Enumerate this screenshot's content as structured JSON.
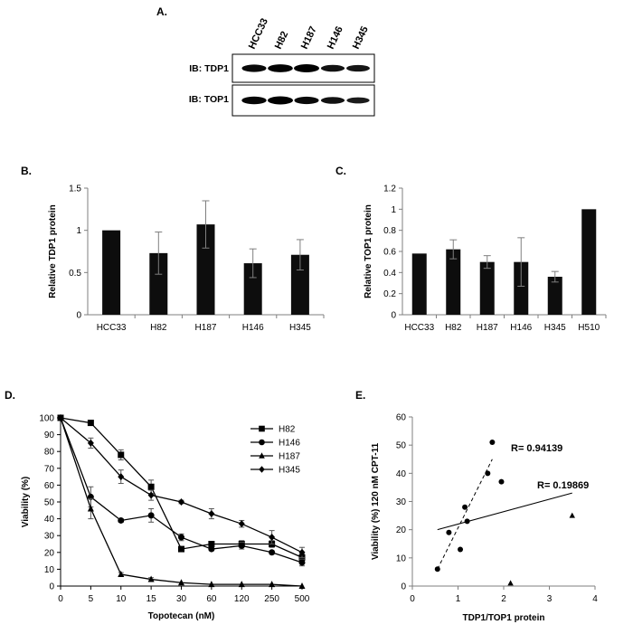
{
  "panels": {
    "a": {
      "letter": "A.",
      "lanes": [
        "HCC33",
        "H82",
        "H187",
        "H146",
        "H345"
      ],
      "blots": [
        {
          "label": "IB: TDP1",
          "intensity": [
            0.85,
            0.95,
            1.0,
            0.7,
            0.65
          ]
        },
        {
          "label": "IB: TOP1",
          "intensity": [
            0.9,
            1.0,
            0.85,
            0.7,
            0.55
          ]
        }
      ]
    },
    "b": {
      "letter": "B."
    },
    "c": {
      "letter": "C."
    },
    "d": {
      "letter": "D."
    },
    "e": {
      "letter": "E.",
      "r1": "R= 0.94139",
      "r2": "R= 0.19869"
    }
  },
  "chart_data": [
    {
      "id": "b",
      "type": "bar",
      "categories": [
        "HCC33",
        "H82",
        "H187",
        "H146",
        "H345"
      ],
      "values": [
        1.0,
        0.73,
        1.07,
        0.61,
        0.71
      ],
      "errors": [
        0,
        0.25,
        0.28,
        0.17,
        0.18
      ],
      "ylabel": "Relative TDP1 protein",
      "ylim": [
        0,
        1.5
      ],
      "yticks": [
        "0",
        "0.5",
        "1",
        "1.5"
      ],
      "ytick_values": [
        0,
        0.5,
        1,
        1.5
      ]
    },
    {
      "id": "c",
      "type": "bar",
      "categories": [
        "HCC33",
        "H82",
        "H187",
        "H146",
        "H345",
        "H510"
      ],
      "values": [
        0.58,
        0.62,
        0.5,
        0.5,
        0.36,
        1.0
      ],
      "errors": [
        0,
        0.09,
        0.06,
        0.23,
        0.05,
        0
      ],
      "ylabel": "Relative TOP1 protein",
      "ylim": [
        0,
        1.2
      ],
      "yticks": [
        "0",
        "0.2",
        "0.4",
        "0.6",
        "0.8",
        "1",
        "1.2"
      ],
      "ytick_values": [
        0,
        0.2,
        0.4,
        0.6,
        0.8,
        1,
        1.2
      ]
    },
    {
      "id": "d",
      "type": "line",
      "categories": [
        "0",
        "5",
        "10",
        "15",
        "30",
        "60",
        "120",
        "250",
        "500"
      ],
      "xlabel": "Topotecan (nM)",
      "ylabel": "Viability (%)",
      "ylim": [
        0,
        100
      ],
      "yticks": [
        "0",
        "10",
        "20",
        "30",
        "40",
        "50",
        "60",
        "70",
        "80",
        "90",
        "100"
      ],
      "ytick_values": [
        0,
        10,
        20,
        30,
        40,
        50,
        60,
        70,
        80,
        90,
        100
      ],
      "legend_position": "top-right",
      "series": [
        {
          "name": "H82",
          "marker": "square",
          "values": [
            100,
            97,
            78,
            59,
            22,
            25,
            25,
            25,
            17
          ],
          "errors": [
            0,
            1,
            3,
            4,
            1,
            1,
            2,
            2,
            2
          ]
        },
        {
          "name": "H146",
          "marker": "circle",
          "values": [
            100,
            53,
            39,
            42,
            29,
            22,
            24,
            20,
            14
          ],
          "errors": [
            0,
            6,
            1,
            4,
            2,
            1,
            2,
            1,
            2
          ]
        },
        {
          "name": "H187",
          "marker": "triangle",
          "values": [
            100,
            46,
            7,
            4,
            2,
            1,
            1,
            1,
            0
          ],
          "errors": [
            0,
            6,
            1,
            1,
            0,
            0,
            0,
            0,
            0
          ]
        },
        {
          "name": "H345",
          "marker": "diamond",
          "values": [
            100,
            85,
            65,
            54,
            50,
            43,
            37,
            29,
            20
          ],
          "errors": [
            0,
            3,
            4,
            3,
            1,
            3,
            2,
            4,
            3
          ]
        }
      ]
    },
    {
      "id": "e",
      "type": "scatter",
      "xlabel": "TDP1/TOP1 protein",
      "ylabel": "Viability (%) 120 nM CPT-11",
      "xlim": [
        0,
        4
      ],
      "ylim": [
        0,
        60
      ],
      "xticks": [
        "0",
        "1",
        "2",
        "3",
        "4"
      ],
      "xtick_values": [
        0,
        1,
        2,
        3,
        4
      ],
      "yticks": [
        "0",
        "10",
        "20",
        "30",
        "40",
        "50",
        "60"
      ],
      "ytick_values": [
        0,
        10,
        20,
        30,
        40,
        50,
        60
      ],
      "series": [
        {
          "marker": "circle",
          "x": [
            0.55,
            0.8,
            1.05,
            1.15,
            1.2,
            1.65,
            1.75,
            1.95
          ],
          "y": [
            6,
            19,
            13,
            28,
            23,
            40,
            51,
            37
          ]
        },
        {
          "marker": "triangle",
          "x": [
            2.15,
            3.5
          ],
          "y": [
            1,
            25
          ]
        }
      ],
      "trendlines": [
        {
          "style": "dashed",
          "x": [
            0.55,
            1.75
          ],
          "y": [
            6,
            45
          ]
        },
        {
          "style": "solid",
          "x": [
            0.55,
            3.5
          ],
          "y": [
            20,
            33
          ]
        }
      ]
    }
  ]
}
